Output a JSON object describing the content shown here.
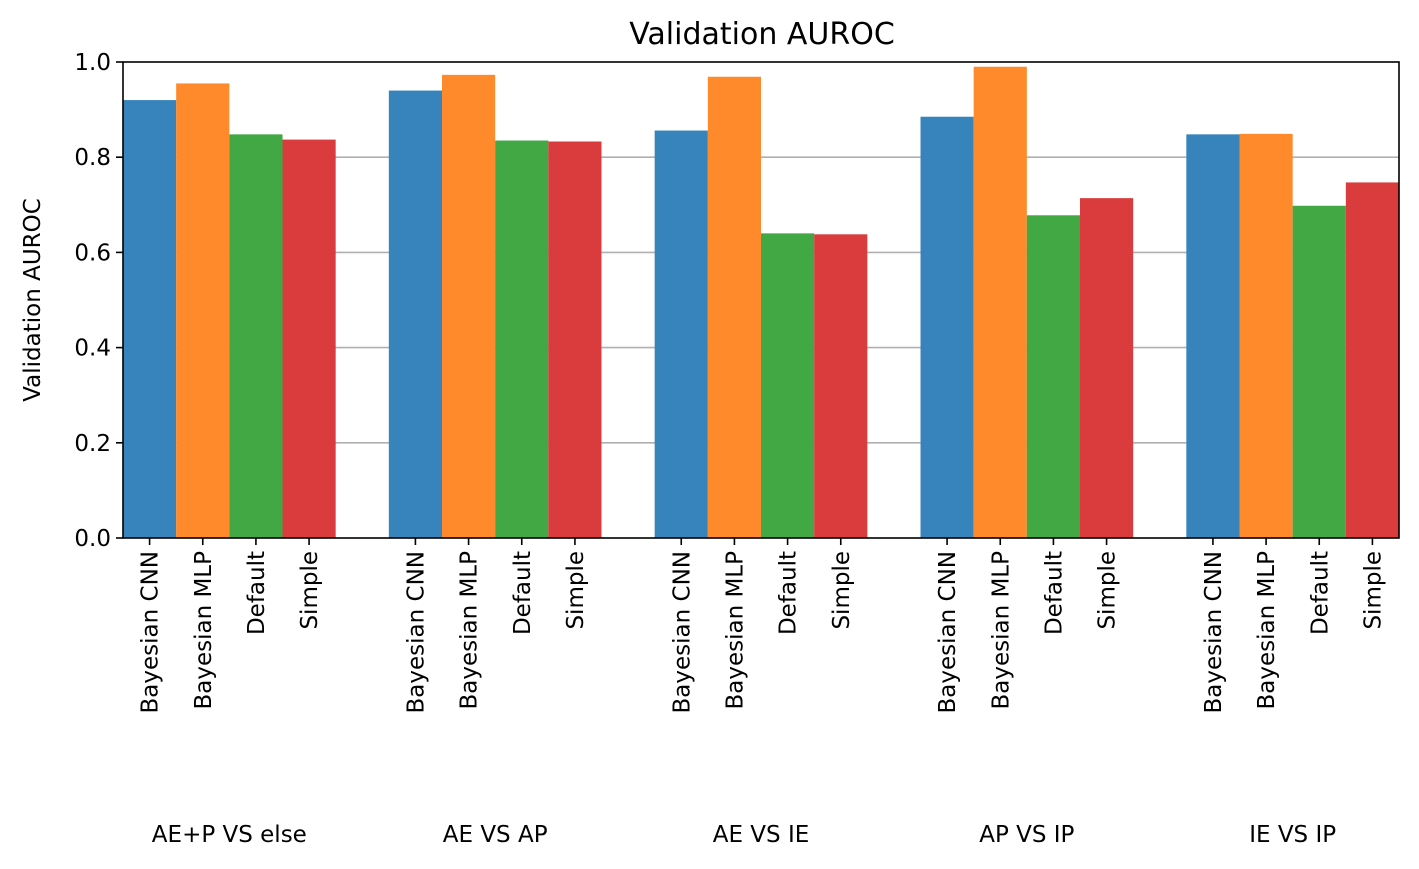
{
  "chart_data": {
    "type": "bar",
    "title": "Validation AUROC",
    "ylabel": "Validation AUROC",
    "xlabel": "",
    "ylim": [
      0.0,
      1.0
    ],
    "yticks": [
      "0.0",
      "0.2",
      "0.4",
      "0.6",
      "0.8",
      "1.0"
    ],
    "grid": "y",
    "groups": [
      "AE+P VS else",
      "AE VS AP",
      "AE VS IE",
      "AP VS IP",
      "IE VS IP"
    ],
    "series": [
      {
        "name": "Bayesian CNN",
        "color": "#3784bd",
        "values": [
          0.92,
          0.94,
          0.856,
          0.885,
          0.848
        ]
      },
      {
        "name": "Bayesian MLP",
        "color": "#fe8a2b",
        "values": [
          0.955,
          0.973,
          0.969,
          0.99,
          0.849
        ]
      },
      {
        "name": "Default",
        "color": "#41a843",
        "values": [
          0.848,
          0.835,
          0.64,
          0.678,
          0.698
        ]
      },
      {
        "name": "Simple",
        "color": "#da3b3d",
        "values": [
          0.837,
          0.833,
          0.638,
          0.714,
          0.747
        ]
      }
    ]
  }
}
